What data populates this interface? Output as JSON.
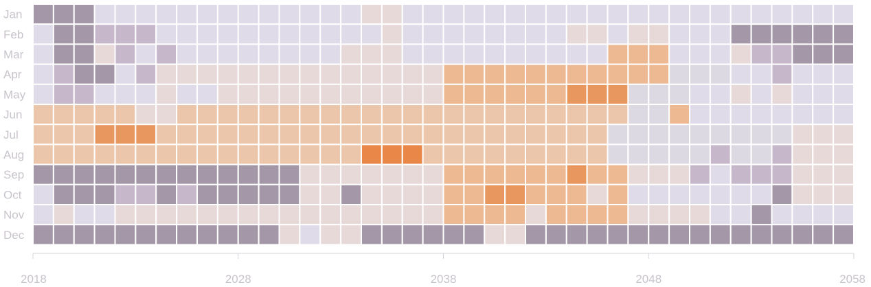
{
  "chart_data": {
    "type": "heatmap",
    "title": "",
    "xlabel": "",
    "ylabel": "",
    "rows": [
      "Jan",
      "Feb",
      "Mar",
      "Apr",
      "May",
      "Jun",
      "Jul",
      "Aug",
      "Sep",
      "Oct",
      "Nov",
      "Dec"
    ],
    "x_start": 2018,
    "x_end": 2057,
    "x_ticks": [
      2018,
      2028,
      2038,
      2048,
      2058
    ],
    "grid": false,
    "legend": "none",
    "level_meaning": "0 = darkest purple-grey (lowest) ... 8 = strongest orange (highest)",
    "palette": {
      "0": "#a497a7",
      "1": "#c7b7cb",
      "2": "#e0dbe9",
      "3": "#dcd9e2",
      "4": "#e8d9d9",
      "5": "#ecc6aa",
      "6": "#edb993",
      "7": "#e8985f",
      "8": "#e88747"
    },
    "values": [
      [
        0,
        0,
        0,
        2,
        2,
        2,
        2,
        2,
        2,
        2,
        2,
        2,
        2,
        2,
        2,
        2,
        4,
        4,
        2,
        2,
        2,
        2,
        2,
        2,
        2,
        2,
        2,
        2,
        2,
        2,
        2,
        2,
        2,
        2,
        2,
        2,
        2,
        2,
        2,
        2
      ],
      [
        2,
        0,
        0,
        1,
        1,
        1,
        2,
        2,
        2,
        2,
        2,
        2,
        2,
        2,
        2,
        2,
        2,
        4,
        2,
        2,
        2,
        2,
        2,
        2,
        2,
        2,
        4,
        4,
        2,
        4,
        4,
        2,
        2,
        2,
        0,
        0,
        0,
        0,
        0,
        0
      ],
      [
        2,
        0,
        0,
        4,
        1,
        2,
        1,
        2,
        2,
        2,
        2,
        2,
        2,
        2,
        2,
        4,
        4,
        4,
        2,
        2,
        2,
        2,
        2,
        2,
        2,
        2,
        2,
        2,
        6,
        6,
        6,
        2,
        2,
        2,
        4,
        1,
        1,
        0,
        0,
        0
      ],
      [
        2,
        1,
        0,
        0,
        2,
        1,
        4,
        4,
        4,
        4,
        4,
        4,
        4,
        4,
        4,
        4,
        4,
        4,
        4,
        4,
        6,
        6,
        6,
        6,
        6,
        6,
        6,
        6,
        6,
        6,
        6,
        3,
        3,
        3,
        2,
        2,
        1,
        2,
        2,
        2
      ],
      [
        2,
        1,
        1,
        2,
        2,
        2,
        4,
        2,
        2,
        4,
        4,
        4,
        4,
        4,
        4,
        4,
        4,
        4,
        4,
        4,
        6,
        6,
        6,
        6,
        6,
        6,
        7,
        7,
        7,
        3,
        3,
        3,
        2,
        2,
        4,
        2,
        4,
        2,
        2,
        2
      ],
      [
        5,
        5,
        5,
        5,
        5,
        4,
        4,
        5,
        5,
        5,
        5,
        5,
        5,
        5,
        5,
        5,
        5,
        5,
        5,
        5,
        5,
        5,
        5,
        5,
        5,
        5,
        5,
        5,
        5,
        3,
        3,
        6,
        2,
        2,
        2,
        2,
        2,
        2,
        2,
        2
      ],
      [
        5,
        5,
        5,
        7,
        7,
        7,
        5,
        5,
        5,
        5,
        5,
        5,
        5,
        5,
        5,
        5,
        5,
        5,
        5,
        5,
        5,
        5,
        5,
        5,
        5,
        5,
        5,
        5,
        3,
        3,
        3,
        3,
        3,
        3,
        3,
        3,
        3,
        4,
        4,
        4
      ],
      [
        5,
        5,
        5,
        5,
        5,
        5,
        5,
        5,
        5,
        5,
        5,
        5,
        5,
        5,
        5,
        5,
        8,
        8,
        8,
        5,
        5,
        5,
        5,
        5,
        5,
        5,
        5,
        5,
        3,
        3,
        3,
        3,
        3,
        1,
        3,
        3,
        1,
        4,
        4,
        4
      ],
      [
        0,
        0,
        0,
        0,
        0,
        0,
        0,
        0,
        0,
        0,
        0,
        0,
        0,
        4,
        4,
        4,
        4,
        4,
        4,
        4,
        6,
        6,
        6,
        6,
        6,
        6,
        7,
        6,
        6,
        4,
        4,
        4,
        1,
        2,
        1,
        1,
        1,
        4,
        4,
        4
      ],
      [
        2,
        0,
        0,
        0,
        1,
        1,
        0,
        1,
        0,
        0,
        0,
        0,
        0,
        4,
        4,
        0,
        4,
        4,
        4,
        4,
        6,
        6,
        7,
        7,
        6,
        6,
        6,
        4,
        6,
        2,
        2,
        2,
        2,
        2,
        2,
        2,
        0,
        4,
        4,
        4
      ],
      [
        2,
        4,
        2,
        2,
        4,
        4,
        4,
        4,
        4,
        4,
        4,
        4,
        4,
        4,
        4,
        4,
        4,
        4,
        4,
        4,
        6,
        6,
        6,
        6,
        4,
        6,
        6,
        6,
        6,
        4,
        4,
        4,
        4,
        2,
        2,
        0,
        2,
        2,
        2,
        2
      ],
      [
        0,
        0,
        0,
        0,
        0,
        0,
        0,
        0,
        0,
        0,
        0,
        0,
        4,
        2,
        4,
        4,
        0,
        0,
        0,
        0,
        0,
        0,
        4,
        4,
        0,
        0,
        0,
        0,
        0,
        0,
        0,
        0,
        0,
        0,
        0,
        0,
        0,
        0,
        0,
        0
      ]
    ]
  }
}
